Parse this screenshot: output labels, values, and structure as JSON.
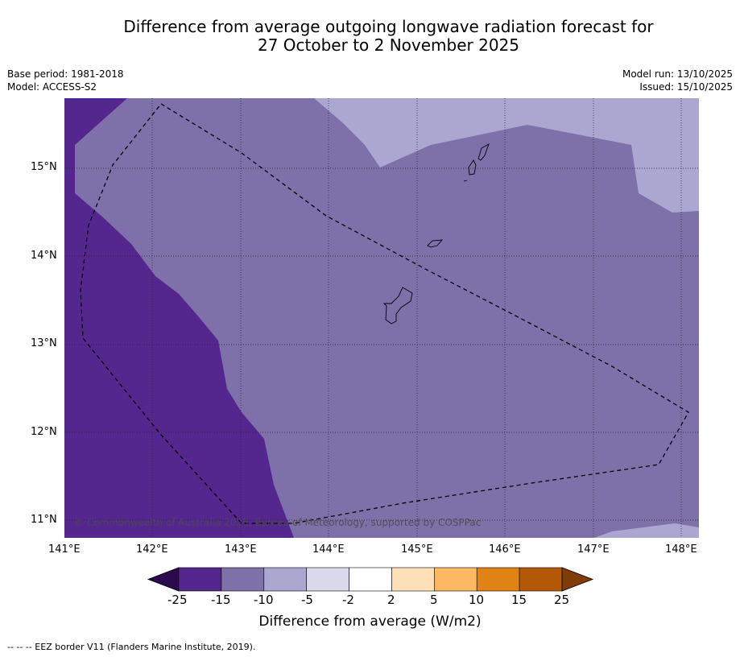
{
  "title": {
    "line1": "Difference from average outgoing longwave radiation forecast for",
    "line2": "27 October to 2 November 2025"
  },
  "meta_left": {
    "base_period": "Base period: 1981-2018",
    "model": "Model: ACCESS-S2"
  },
  "meta_right": {
    "model_run": "Model run: 13/10/2025",
    "issued": "Issued: 15/10/2025"
  },
  "map": {
    "lon_range": [
      141,
      148.2
    ],
    "lat_range": [
      10.8,
      15.8
    ],
    "lon_ticks": [
      "141°E",
      "142°E",
      "143°E",
      "144°E",
      "145°E",
      "146°E",
      "147°E",
      "148°E"
    ],
    "lat_ticks": [
      "15°N",
      "14°N",
      "13°N",
      "12°N",
      "11°N"
    ],
    "copyright": "© Commonwealth of Australia 2025, Bureau of Meteorology, supported by COSPPac"
  },
  "colorbar": {
    "title": "Difference from average (W/m2)",
    "tick_labels": [
      "-25",
      "-15",
      "-10",
      "-5",
      "-2",
      "2",
      "5",
      "10",
      "15",
      "25"
    ],
    "colors": [
      "#2d0a4e",
      "#54278f",
      "#7e71aa",
      "#aca7d0",
      "#d9d9ec",
      "#ffffff",
      "#fde0b8",
      "#fdb863",
      "#e08214",
      "#b35806",
      "#7f3b08"
    ]
  },
  "footnote": "-- -- -- EEZ border V11 (Flanders Marine Institute, 2019)."
}
